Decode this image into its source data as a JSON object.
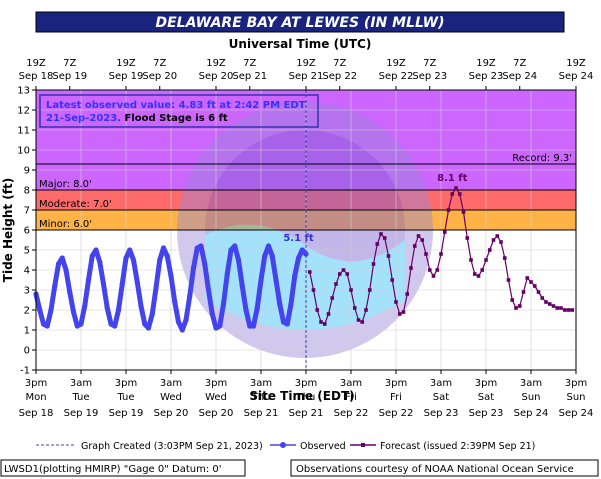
{
  "chart_data": {
    "type": "line",
    "title": "DELAWARE BAY AT LEWES (IN MLLW)",
    "top_axis_title": "Universal Time (UTC)",
    "xlabel": "Site Time (EDT)",
    "ylabel": "Tide Height (ft)",
    "ylim": [
      -1,
      13
    ],
    "yticks": [
      -1,
      0,
      1,
      2,
      3,
      4,
      5,
      6,
      7,
      8,
      9,
      10,
      11,
      12,
      13
    ],
    "x_unit": "hours since Sep 18 3pm EDT",
    "xlim": [
      0,
      144
    ],
    "grid": true,
    "top_ticks": [
      {
        "x": 0,
        "line1": "19Z",
        "line2": "Sep 18"
      },
      {
        "x": 9,
        "line1": "7Z",
        "line2": "Sep 19"
      },
      {
        "x": 24,
        "line1": "19Z",
        "line2": "Sep 19"
      },
      {
        "x": 33,
        "line1": "7Z",
        "line2": "Sep 20"
      },
      {
        "x": 48,
        "line1": "19Z",
        "line2": "Sep 20"
      },
      {
        "x": 57,
        "line1": "7Z",
        "line2": "Sep 21"
      },
      {
        "x": 72,
        "line1": "19Z",
        "line2": "Sep 21"
      },
      {
        "x": 81,
        "line1": "7Z",
        "line2": "Sep 22"
      },
      {
        "x": 96,
        "line1": "19Z",
        "line2": "Sep 22"
      },
      {
        "x": 105,
        "line1": "7Z",
        "line2": "Sep 23"
      },
      {
        "x": 120,
        "line1": "19Z",
        "line2": "Sep 23"
      },
      {
        "x": 129,
        "line1": "7Z",
        "line2": "Sep 24"
      },
      {
        "x": 144,
        "line1": "19Z",
        "line2": "Sep 24"
      }
    ],
    "bottom_ticks": [
      {
        "x": 0,
        "line1": "3pm",
        "line2": "Mon",
        "line3": "Sep 18"
      },
      {
        "x": 12,
        "line1": "3am",
        "line2": "Tue",
        "line3": "Sep 19"
      },
      {
        "x": 24,
        "line1": "3pm",
        "line2": "Tue",
        "line3": "Sep 19"
      },
      {
        "x": 36,
        "line1": "3am",
        "line2": "Wed",
        "line3": "Sep 20"
      },
      {
        "x": 48,
        "line1": "3pm",
        "line2": "Wed",
        "line3": "Sep 20"
      },
      {
        "x": 60,
        "line1": "3am",
        "line2": "Thu",
        "line3": "Sep 21"
      },
      {
        "x": 72,
        "line1": "3pm",
        "line2": "Thu",
        "line3": "Sep 21"
      },
      {
        "x": 84,
        "line1": "3am",
        "line2": "Fri",
        "line3": "Sep 22"
      },
      {
        "x": 96,
        "line1": "3pm",
        "line2": "Fri",
        "line3": "Sep 22"
      },
      {
        "x": 108,
        "line1": "3am",
        "line2": "Sat",
        "line3": "Sep 23"
      },
      {
        "x": 120,
        "line1": "3pm",
        "line2": "Sat",
        "line3": "Sep 23"
      },
      {
        "x": 132,
        "line1": "3am",
        "line2": "Sun",
        "line3": "Sep 24"
      },
      {
        "x": 144,
        "line1": "3pm",
        "line2": "Sun",
        "line3": "Sep 24"
      }
    ],
    "flood_bands": [
      {
        "label": "Major: 8.0'",
        "from": 8,
        "to": 13,
        "color": "#cc66ff"
      },
      {
        "label": "Moderate: 7.0'",
        "from": 7,
        "to": 8,
        "color": "#ff6b6b"
      },
      {
        "label": "Minor: 6.0'",
        "from": 6,
        "to": 7,
        "color": "#ffb347"
      }
    ],
    "record": {
      "label": "Record: 9.3'",
      "value": 9.3
    },
    "graph_created_x": 72,
    "series": [
      {
        "name": "Observed",
        "color": "#4444ee",
        "x": [
          0,
          1,
          2,
          3,
          4,
          5,
          6,
          7,
          8,
          9,
          10,
          11,
          12,
          13,
          14,
          15,
          16,
          17,
          18,
          19,
          20,
          21,
          22,
          23,
          24,
          25,
          26,
          27,
          28,
          29,
          30,
          31,
          32,
          33,
          34,
          35,
          36,
          37,
          38,
          39,
          40,
          41,
          42,
          43,
          44,
          45,
          46,
          47,
          48,
          49,
          50,
          51,
          52,
          53,
          54,
          55,
          56,
          57,
          58,
          59,
          60,
          61,
          62,
          63,
          64,
          65,
          66,
          67,
          68,
          69,
          70,
          71,
          72
        ],
        "values": [
          2.8,
          2.0,
          1.3,
          1.2,
          2.0,
          3.2,
          4.3,
          4.6,
          4.0,
          2.9,
          1.9,
          1.2,
          1.3,
          2.2,
          3.5,
          4.7,
          5.0,
          4.4,
          3.3,
          2.1,
          1.3,
          1.2,
          2.0,
          3.3,
          4.6,
          5.0,
          4.5,
          3.4,
          2.2,
          1.3,
          1.1,
          1.8,
          3.1,
          4.5,
          5.1,
          4.7,
          3.7,
          2.4,
          1.4,
          1.0,
          1.5,
          2.7,
          4.1,
          5.1,
          5.2,
          4.3,
          3.0,
          1.8,
          1.1,
          1.2,
          2.3,
          3.8,
          5.0,
          5.2,
          4.5,
          3.2,
          2.0,
          1.2,
          1.2,
          2.1,
          3.5,
          4.7,
          5.2,
          4.7,
          3.5,
          2.3,
          1.4,
          1.3,
          2.3,
          3.7,
          4.6,
          5.0,
          4.8
        ]
      },
      {
        "name": "Forecast (issued 2:39PM Sep 21)",
        "color": "#660066",
        "x": [
          73,
          74,
          75,
          76,
          77,
          78,
          79,
          80,
          81,
          82,
          83,
          84,
          85,
          86,
          87,
          88,
          89,
          90,
          91,
          92,
          93,
          94,
          95,
          96,
          97,
          98,
          99,
          100,
          101,
          102,
          103,
          104,
          105,
          106,
          107,
          108,
          109,
          110,
          111,
          112,
          113,
          114,
          115,
          116,
          117,
          118,
          119,
          120,
          121,
          122,
          123,
          124,
          125,
          126,
          127,
          128,
          129,
          130,
          131,
          132,
          133,
          134,
          135,
          136,
          137,
          138,
          139,
          140,
          141,
          142,
          143
        ],
        "values": [
          3.9,
          3.0,
          2.0,
          1.4,
          1.3,
          1.8,
          2.6,
          3.3,
          3.8,
          4.0,
          3.8,
          3.0,
          2.1,
          1.5,
          1.4,
          2.0,
          3.0,
          4.3,
          5.3,
          5.8,
          5.6,
          4.7,
          3.5,
          2.4,
          1.8,
          1.9,
          2.8,
          4.1,
          5.2,
          5.7,
          5.5,
          4.8,
          4.0,
          3.7,
          4.0,
          4.8,
          5.9,
          7.0,
          7.8,
          8.1,
          7.8,
          6.9,
          5.6,
          4.5,
          3.8,
          3.7,
          4.0,
          4.5,
          5.0,
          5.5,
          5.7,
          5.4,
          4.6,
          3.5,
          2.5,
          2.1,
          2.2,
          2.9,
          3.6,
          3.4,
          3.2,
          2.9,
          2.6,
          2.4,
          2.3,
          2.2,
          2.1,
          2.1,
          2.0,
          2.0,
          2.0
        ]
      }
    ],
    "annotations": [
      {
        "text": "5.1 ft",
        "x": 70,
        "y": 5.1,
        "color": "#3333cc"
      },
      {
        "text": "8.1 ft",
        "x": 111,
        "y": 8.1,
        "color": "#660066"
      }
    ]
  },
  "info_box": {
    "line1": "Latest observed value:  4.83 ft at 2:42 PM EDT",
    "line2_date": "21-Sep-2023.",
    "line2_rest": "  Flood Stage is 6 ft"
  },
  "legend": {
    "graph_created": "Graph Created (3:03PM Sep 21, 2023)",
    "observed": "Observed",
    "forecast": "Forecast (issued 2:39PM Sep 21)"
  },
  "footer": {
    "left": "LWSD1(plotting HMIRP) \"Gage 0\" Datum:  0'",
    "right": "Observations courtesy of NOAA National Ocean Service"
  },
  "colors": {
    "title_bar": "#1a237e",
    "plot_bg": "#ffffff",
    "grid": "#d0d0d0",
    "observed": "#4444ee",
    "forecast": "#660066"
  }
}
